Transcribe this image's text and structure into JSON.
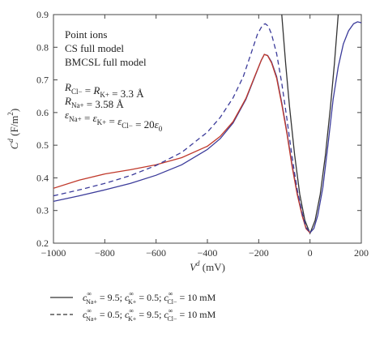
{
  "chart_data": {
    "type": "line",
    "xlabel_base": "V",
    "xlabel_sup": "d",
    "xlabel_unit": " (mV)",
    "ylabel_base": "C",
    "ylabel_sup": "d",
    "ylabel_unit_pre": " (F/m",
    "ylabel_unit_sup": "2",
    "ylabel_unit_post": ")",
    "xlim": [
      -1000,
      200
    ],
    "ylim": [
      0.2,
      0.9
    ],
    "xticks": [
      -1000,
      -800,
      -600,
      -400,
      -200,
      0,
      200
    ],
    "xtick_labels": [
      "−1000",
      "−800",
      "−600",
      "−400",
      "−200",
      "0",
      "200"
    ],
    "yticks": [
      0.2,
      0.3,
      0.4,
      0.5,
      0.6,
      0.7,
      0.8,
      0.9
    ],
    "ytick_labels": [
      "0.2",
      "0.3",
      "0.4",
      "0.5",
      "0.6",
      "0.7",
      "0.8",
      "0.9"
    ],
    "series": [
      {
        "name": "Point ions",
        "color": "#333333",
        "style": "solid",
        "points": [
          [
            -110,
            0.9
          ],
          [
            -95,
            0.75
          ],
          [
            -80,
            0.62
          ],
          [
            -60,
            0.47
          ],
          [
            -40,
            0.35
          ],
          [
            -20,
            0.27
          ],
          [
            0,
            0.23
          ],
          [
            20,
            0.27
          ],
          [
            40,
            0.35
          ],
          [
            60,
            0.47
          ],
          [
            80,
            0.62
          ],
          [
            95,
            0.75
          ],
          [
            110,
            0.9
          ]
        ]
      },
      {
        "name": "CS full model",
        "color": "#3b3b9a",
        "style": "solid",
        "points": [
          [
            -1000,
            0.328
          ],
          [
            -900,
            0.345
          ],
          [
            -800,
            0.363
          ],
          [
            -700,
            0.383
          ],
          [
            -600,
            0.408
          ],
          [
            -500,
            0.44
          ],
          [
            -400,
            0.487
          ],
          [
            -350,
            0.52
          ],
          [
            -300,
            0.568
          ],
          [
            -250,
            0.64
          ],
          [
            -215,
            0.71
          ],
          [
            -190,
            0.76
          ],
          [
            -178,
            0.778
          ],
          [
            -165,
            0.775
          ],
          [
            -150,
            0.755
          ],
          [
            -130,
            0.71
          ],
          [
            -110,
            0.63
          ],
          [
            -90,
            0.54
          ],
          [
            -70,
            0.44
          ],
          [
            -50,
            0.355
          ],
          [
            -30,
            0.285
          ],
          [
            -15,
            0.245
          ],
          [
            0,
            0.232
          ],
          [
            15,
            0.245
          ],
          [
            30,
            0.285
          ],
          [
            50,
            0.37
          ],
          [
            70,
            0.5
          ],
          [
            90,
            0.64
          ],
          [
            110,
            0.74
          ],
          [
            130,
            0.81
          ],
          [
            150,
            0.85
          ],
          [
            170,
            0.872
          ],
          [
            185,
            0.878
          ],
          [
            200,
            0.875
          ]
        ]
      },
      {
        "name": "BMCSL full model",
        "color": "#c0392b",
        "style": "solid",
        "points": [
          [
            -1000,
            0.368
          ],
          [
            -900,
            0.393
          ],
          [
            -800,
            0.412
          ],
          [
            -700,
            0.425
          ],
          [
            -600,
            0.44
          ],
          [
            -500,
            0.462
          ],
          [
            -400,
            0.497
          ],
          [
            -350,
            0.527
          ],
          [
            -300,
            0.572
          ],
          [
            -250,
            0.643
          ],
          [
            -215,
            0.712
          ],
          [
            -190,
            0.76
          ],
          [
            -178,
            0.778
          ],
          [
            -165,
            0.774
          ],
          [
            -150,
            0.752
          ],
          [
            -130,
            0.705
          ],
          [
            -110,
            0.625
          ],
          [
            -90,
            0.535
          ],
          [
            -70,
            0.435
          ],
          [
            -50,
            0.35
          ],
          [
            -30,
            0.282
          ],
          [
            -15,
            0.244
          ],
          [
            0,
            0.232
          ]
        ]
      },
      {
        "name": "",
        "color": "#3b3b9a",
        "style": "dashed",
        "points": [
          [
            -1000,
            0.345
          ],
          [
            -900,
            0.363
          ],
          [
            -800,
            0.383
          ],
          [
            -700,
            0.407
          ],
          [
            -600,
            0.438
          ],
          [
            -500,
            0.478
          ],
          [
            -400,
            0.54
          ],
          [
            -350,
            0.585
          ],
          [
            -300,
            0.645
          ],
          [
            -260,
            0.71
          ],
          [
            -230,
            0.78
          ],
          [
            -205,
            0.84
          ],
          [
            -185,
            0.868
          ],
          [
            -175,
            0.872
          ],
          [
            -163,
            0.865
          ],
          [
            -150,
            0.84
          ],
          [
            -130,
            0.78
          ],
          [
            -110,
            0.69
          ],
          [
            -90,
            0.58
          ],
          [
            -70,
            0.465
          ],
          [
            -50,
            0.365
          ],
          [
            -30,
            0.29
          ],
          [
            -15,
            0.248
          ],
          [
            0,
            0.233
          ]
        ]
      }
    ],
    "legend_in_plot": [
      {
        "text": "Point ions",
        "color": "#222222"
      },
      {
        "text": "CS full model",
        "color": "#3b3b9a"
      },
      {
        "text": "BMCSL full model",
        "color": "#c0392b"
      }
    ],
    "annotation_lines": [
      {
        "p": [
          "R",
          "Cl−",
          " = ",
          "R",
          "K+",
          " = 3.3 Å"
        ]
      },
      {
        "p": [
          "R",
          "Na+",
          " = 3.58 Å",
          "",
          "",
          ""
        ]
      },
      {
        "p": [
          "ε",
          "Na+",
          " = ",
          "ε",
          "K+",
          " = "
        ],
        "tail": [
          "ε",
          "Cl−",
          " = 20",
          "ε",
          "0",
          ""
        ]
      }
    ],
    "bottom_legend": [
      {
        "style": "solid",
        "parts": [
          "c",
          "∞",
          "Na+",
          " = 9.5; ",
          "c",
          "∞",
          "K+",
          " = 0.5; ",
          "c",
          "∞",
          "Cl−",
          " = 10 mM"
        ]
      },
      {
        "style": "dashed",
        "parts": [
          "c",
          "∞",
          "Na+",
          " = 0.5; ",
          "c",
          "∞",
          "K+",
          " = 9.5; ",
          "c",
          "∞",
          "Cl−",
          " = 10 mM"
        ]
      }
    ]
  }
}
